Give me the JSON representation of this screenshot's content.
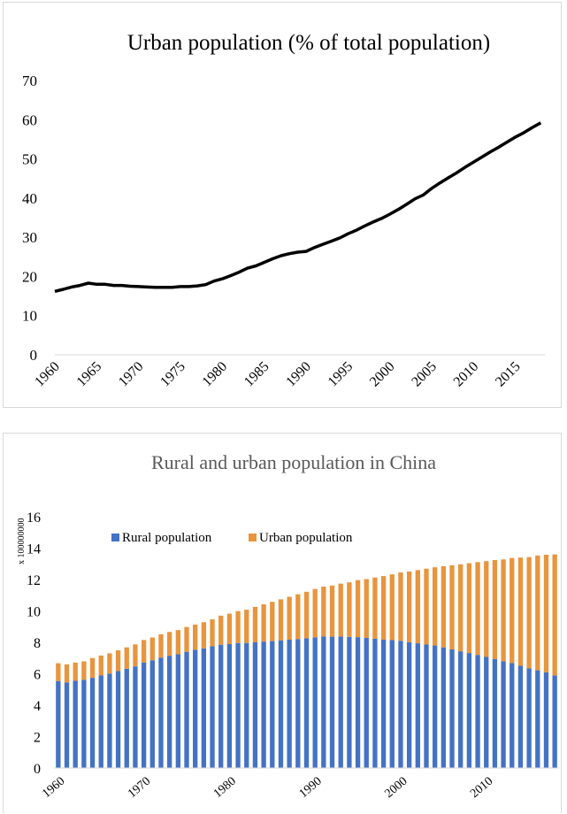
{
  "chart_data": [
    {
      "type": "line",
      "title": "Urban population (% of total population)",
      "xlabel": "",
      "ylabel": "",
      "ylim": [
        0,
        70
      ],
      "yticks": [
        "0",
        "10",
        "20",
        "30",
        "40",
        "50",
        "60",
        "70"
      ],
      "xticks": [
        "1960",
        "1965",
        "1970",
        "1975",
        "1980",
        "1985",
        "1990",
        "1995",
        "2000",
        "2005",
        "2010",
        "2015"
      ],
      "grid": false,
      "series": [
        {
          "color": "#000000",
          "x": [
            1960,
            1961,
            1962,
            1963,
            1964,
            1965,
            1966,
            1967,
            1968,
            1969,
            1970,
            1971,
            1972,
            1973,
            1974,
            1975,
            1976,
            1977,
            1978,
            1979,
            1980,
            1981,
            1982,
            1983,
            1984,
            1985,
            1986,
            1987,
            1988,
            1989,
            1990,
            1991,
            1992,
            1993,
            1994,
            1995,
            1996,
            1997,
            1998,
            1999,
            2000,
            2001,
            2002,
            2003,
            2004,
            2005,
            2006,
            2007,
            2008,
            2009,
            2010,
            2011,
            2012,
            2013,
            2014,
            2015,
            2016,
            2017,
            2018
          ],
          "values": [
            16.2,
            16.7,
            17.3,
            17.7,
            18.3,
            18.0,
            18.0,
            17.7,
            17.7,
            17.5,
            17.4,
            17.3,
            17.2,
            17.2,
            17.2,
            17.4,
            17.4,
            17.6,
            17.9,
            18.8,
            19.4,
            20.2,
            21.1,
            22.1,
            22.7,
            23.6,
            24.5,
            25.3,
            25.8,
            26.2,
            26.4,
            27.4,
            28.2,
            29.0,
            29.8,
            30.9,
            31.8,
            32.9,
            33.9,
            34.8,
            35.9,
            37.1,
            38.4,
            39.8,
            40.8,
            42.5,
            43.9,
            45.2,
            46.5,
            47.9,
            49.2,
            50.5,
            51.8,
            53.0,
            54.3,
            55.6,
            56.7,
            58.0,
            59.2
          ]
        }
      ]
    },
    {
      "type": "bar",
      "stacked": true,
      "title": "Rural and urban population in China",
      "xlabel": "",
      "ylabel": "",
      "axis_multiplier": "x 100000000",
      "ylim": [
        0,
        16
      ],
      "yticks": [
        "0",
        "2",
        "4",
        "6",
        "8",
        "10",
        "12",
        "14",
        "16"
      ],
      "xticks": [
        "1960",
        "1970",
        "1980",
        "1990",
        "2000",
        "2010"
      ],
      "grid": false,
      "legend_position": "top-left",
      "x": [
        1960,
        1961,
        1962,
        1963,
        1964,
        1965,
        1966,
        1967,
        1968,
        1969,
        1970,
        1971,
        1972,
        1973,
        1974,
        1975,
        1976,
        1977,
        1978,
        1979,
        1980,
        1981,
        1982,
        1983,
        1984,
        1985,
        1986,
        1987,
        1988,
        1989,
        1990,
        1991,
        1992,
        1993,
        1994,
        1995,
        1996,
        1997,
        1998,
        1999,
        2000,
        2001,
        2002,
        2003,
        2004,
        2005,
        2006,
        2007,
        2008,
        2009,
        2010,
        2011,
        2012,
        2013,
        2014,
        2015,
        2016,
        2017,
        2018
      ],
      "series": [
        {
          "name": "Rural population",
          "color": "#4472c4",
          "values": [
            5.54,
            5.45,
            5.55,
            5.61,
            5.74,
            5.89,
            6.01,
            6.17,
            6.32,
            6.47,
            6.72,
            6.86,
            7.03,
            7.15,
            7.24,
            7.4,
            7.53,
            7.62,
            7.75,
            7.85,
            7.89,
            7.96,
            7.96,
            8.0,
            8.05,
            8.08,
            8.13,
            8.17,
            8.21,
            8.26,
            8.32,
            8.38,
            8.36,
            8.37,
            8.35,
            8.33,
            8.28,
            8.23,
            8.17,
            8.14,
            8.1,
            8.01,
            7.94,
            7.86,
            7.8,
            7.68,
            7.55,
            7.43,
            7.32,
            7.2,
            7.07,
            6.94,
            6.8,
            6.68,
            6.51,
            6.35,
            6.22,
            6.09,
            5.89
          ]
        },
        {
          "name": "Urban population",
          "color": "#e8953e",
          "values": [
            1.13,
            1.15,
            1.16,
            1.18,
            1.26,
            1.27,
            1.29,
            1.32,
            1.36,
            1.4,
            1.43,
            1.45,
            1.48,
            1.51,
            1.54,
            1.58,
            1.6,
            1.66,
            1.72,
            1.85,
            1.94,
            2.03,
            2.12,
            2.26,
            2.37,
            2.5,
            2.61,
            2.73,
            2.85,
            2.96,
            3.08,
            3.17,
            3.26,
            3.37,
            3.47,
            3.63,
            3.75,
            3.9,
            4.05,
            4.19,
            4.35,
            4.5,
            4.66,
            4.83,
            4.98,
            5.17,
            5.36,
            5.54,
            5.72,
            5.91,
            6.1,
            6.3,
            6.48,
            6.69,
            6.89,
            7.08,
            7.31,
            7.49,
            7.71
          ]
        }
      ]
    }
  ]
}
